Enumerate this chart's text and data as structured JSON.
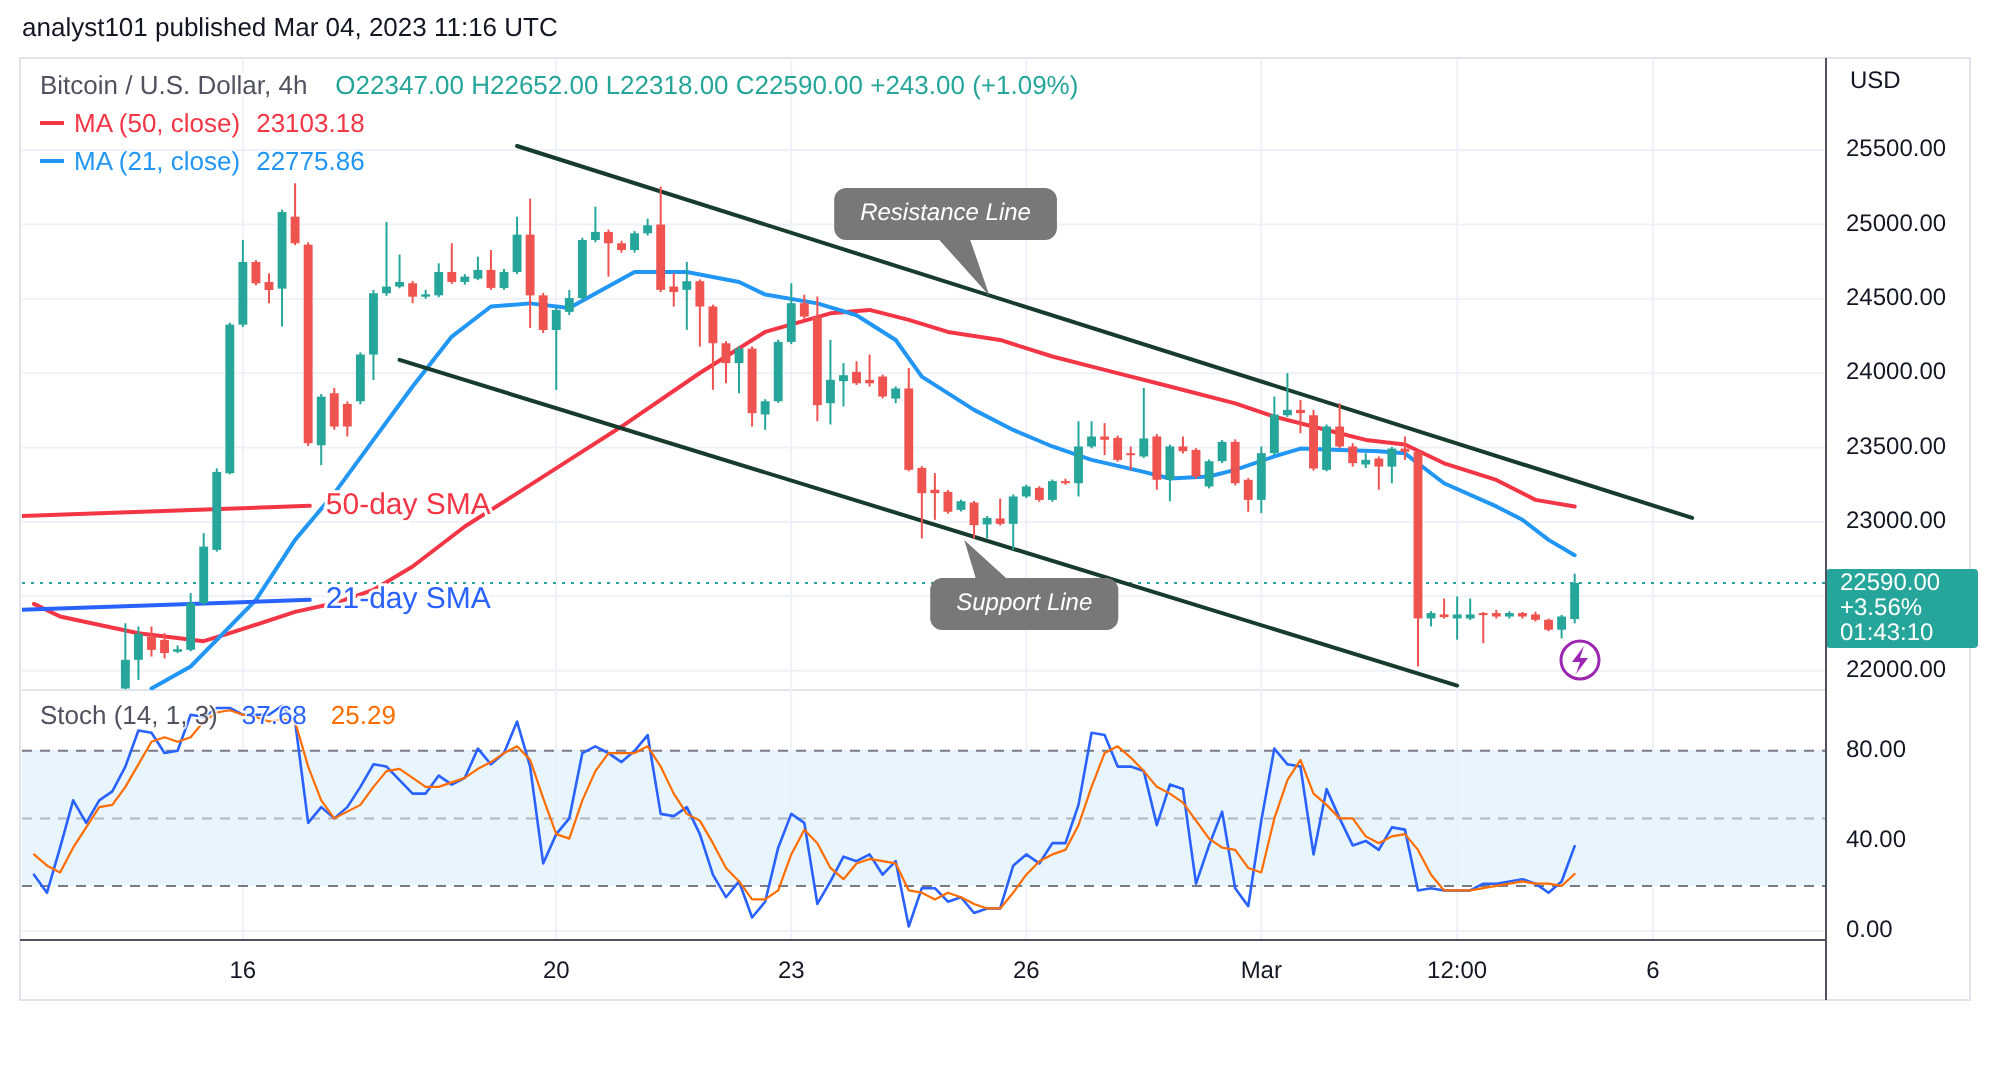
{
  "chart_data": [
    {
      "type": "candlestick",
      "title": "Bitcoin / U.S. Dollar, 4h",
      "subtitle": "O22347.00 H22652.00 L22318.00 C22590.00 +243.00 (+1.09%)",
      "ylabel": "USD",
      "annotations": [
        "analyst101 published Mar 04, 2023 11:16 UTC",
        {
          "text": "Resistance Line",
          "x": "2023-02-25T12:45",
          "y": 24519
        },
        {
          "text": "Support Line",
          "x": "2023-02-25T05:00",
          "y": 22879
        }
      ],
      "xlim": [
        "2023-02-13T04:20",
        "2023-03-08T05:00"
      ],
      "xticks": [
        {
          "value": "2023-02-16",
          "label": null
        },
        {
          "value": "2023-02-20",
          "label": null
        },
        {
          "value": "2023-02-23",
          "label": null
        },
        {
          "value": "2023-02-26",
          "label": null
        },
        {
          "value": "2023-03-01",
          "label": null
        },
        {
          "value": "2023-03-03T12:00",
          "label": null
        },
        {
          "value": "2023-03-06",
          "label": null
        }
      ],
      "ylim": [
        21870,
        26105
      ],
      "yticks": [
        {
          "value": 22000,
          "label": "22000.00"
        },
        {
          "value": 22500,
          "label": null
        },
        {
          "value": 23000,
          "label": "23000.00"
        },
        {
          "value": 23500,
          "label": "23500.00"
        },
        {
          "value": 24000,
          "label": "24000.00"
        },
        {
          "value": 24500,
          "label": "24500.00"
        },
        {
          "value": 25000,
          "label": "25000.00"
        },
        {
          "value": 25500,
          "label": "25500.00"
        }
      ],
      "grid": true,
      "tick_labels": "y",
      "legend": "top left",
      "ref_lines": [
        {
          "axis": "y",
          "value": 22590,
          "label": "22590.00\n+3.56%\n01:43:10",
          "color": "#26a69a",
          "line_style": "dotted"
        }
      ],
      "x": [
        "2023-02-14T12:00",
        "2023-02-14T16:00",
        "2023-02-14T20:00",
        "2023-02-15T00:00",
        "2023-02-15T04:00",
        "2023-02-15T08:00",
        "2023-02-15T12:00",
        "2023-02-15T16:00",
        "2023-02-15T20:00",
        "2023-02-16T00:00",
        "2023-02-16T04:00",
        "2023-02-16T08:00",
        "2023-02-16T12:00",
        "2023-02-16T16:00",
        "2023-02-16T20:00",
        "2023-02-17T00:00",
        "2023-02-17T04:00",
        "2023-02-17T08:00",
        "2023-02-17T12:00",
        "2023-02-17T16:00",
        "2023-02-17T20:00",
        "2023-02-18T00:00",
        "2023-02-18T04:00",
        "2023-02-18T08:00",
        "2023-02-18T12:00",
        "2023-02-18T16:00",
        "2023-02-18T20:00",
        "2023-02-19T00:00",
        "2023-02-19T04:00",
        "2023-02-19T08:00",
        "2023-02-19T12:00",
        "2023-02-19T16:00",
        "2023-02-19T20:00",
        "2023-02-20T00:00",
        "2023-02-20T04:00",
        "2023-02-20T08:00",
        "2023-02-20T12:00",
        "2023-02-20T16:00",
        "2023-02-20T20:00",
        "2023-02-21T00:00",
        "2023-02-21T04:00",
        "2023-02-21T08:00",
        "2023-02-21T12:00",
        "2023-02-21T16:00",
        "2023-02-21T20:00",
        "2023-02-22T00:00",
        "2023-02-22T04:00",
        "2023-02-22T08:00",
        "2023-02-22T12:00",
        "2023-02-22T16:00",
        "2023-02-22T20:00",
        "2023-02-23T00:00",
        "2023-02-23T04:00",
        "2023-02-23T08:00",
        "2023-02-23T12:00",
        "2023-02-23T16:00",
        "2023-02-23T20:00",
        "2023-02-24T00:00",
        "2023-02-24T04:00",
        "2023-02-24T08:00",
        "2023-02-24T12:00",
        "2023-02-24T16:00",
        "2023-02-24T20:00",
        "2023-02-25T00:00",
        "2023-02-25T04:00",
        "2023-02-25T08:00",
        "2023-02-25T12:00",
        "2023-02-25T16:00",
        "2023-02-25T20:00",
        "2023-02-26T00:00",
        "2023-02-26T04:00",
        "2023-02-26T08:00",
        "2023-02-26T12:00",
        "2023-02-26T16:00",
        "2023-02-26T20:00",
        "2023-02-27T00:00",
        "2023-02-27T04:00",
        "2023-02-27T08:00",
        "2023-02-27T12:00",
        "2023-02-27T16:00",
        "2023-02-27T20:00",
        "2023-02-28T00:00",
        "2023-02-28T04:00",
        "2023-02-28T08:00",
        "2023-02-28T12:00",
        "2023-02-28T16:00",
        "2023-02-28T20:00",
        "2023-03-01T00:00",
        "2023-03-01T04:00",
        "2023-03-01T08:00",
        "2023-03-01T12:00",
        "2023-03-01T16:00",
        "2023-03-01T20:00",
        "2023-03-02T00:00",
        "2023-03-02T04:00",
        "2023-03-02T08:00",
        "2023-03-02T12:00",
        "2023-03-02T16:00",
        "2023-03-02T20:00",
        "2023-03-03T00:00",
        "2023-03-03T04:00",
        "2023-03-03T08:00",
        "2023-03-03T12:00",
        "2023-03-03T16:00",
        "2023-03-03T20:00",
        "2023-03-04T00:00",
        "2023-03-04T04:00",
        "2023-03-04T08:00",
        "2023-03-04T12:00",
        "2023-03-04T16:00",
        "2023-03-04T20:00",
        "2023-03-05T00:00"
      ],
      "ohlc": [
        [
          21880,
          22319,
          21875,
          22073
        ],
        [
          22073,
          22297,
          21938,
          22248
        ],
        [
          22230,
          22297,
          22095,
          22140
        ],
        [
          22207,
          22252,
          22082,
          22118
        ],
        [
          22127,
          22170,
          22118,
          22144
        ],
        [
          22140,
          22521,
          22130,
          22454
        ],
        [
          22454,
          22924,
          22440,
          22834
        ],
        [
          22812,
          23360,
          22800,
          23336
        ],
        [
          23327,
          24340,
          23320,
          24326
        ],
        [
          24326,
          24895,
          24310,
          24747
        ],
        [
          24747,
          24760,
          24590,
          24604
        ],
        [
          24613,
          24671,
          24470,
          24559
        ],
        [
          24568,
          25100,
          24313,
          25083
        ],
        [
          25052,
          25276,
          24860,
          24873
        ],
        [
          24864,
          24880,
          23510,
          23529
        ],
        [
          23515,
          23860,
          23381,
          23842
        ],
        [
          23865,
          23901,
          23620,
          23641
        ],
        [
          23793,
          23810,
          23574,
          23641
        ],
        [
          23811,
          24140,
          23790,
          24125
        ],
        [
          24125,
          24560,
          23954,
          24537
        ],
        [
          24537,
          25016,
          24520,
          24582
        ],
        [
          24582,
          24797,
          24570,
          24613
        ],
        [
          24604,
          24620,
          24470,
          24514
        ],
        [
          24514,
          24560,
          24500,
          24530
        ],
        [
          24523,
          24738,
          24510,
          24680
        ],
        [
          24680,
          24873,
          24600,
          24613
        ],
        [
          24613,
          24665,
          24595,
          24649
        ],
        [
          24635,
          24783,
          24625,
          24694
        ],
        [
          24694,
          24828,
          24560,
          24573
        ],
        [
          24573,
          24700,
          24560,
          24680
        ],
        [
          24680,
          25052,
          24665,
          24931
        ],
        [
          24931,
          25173,
          24304,
          24523
        ],
        [
          24523,
          24540,
          24270,
          24290
        ],
        [
          24290,
          24440,
          23887,
          24425
        ],
        [
          24412,
          24559,
          24390,
          24505
        ],
        [
          24505,
          24910,
          24490,
          24895
        ],
        [
          24895,
          25119,
          24880,
          24949
        ],
        [
          24949,
          24965,
          24649,
          24873
        ],
        [
          24873,
          24890,
          24810,
          24828
        ],
        [
          24828,
          24955,
          24810,
          24940
        ],
        [
          24940,
          25039,
          24925,
          24994
        ],
        [
          24999,
          25254,
          24545,
          24560
        ],
        [
          24582,
          24672,
          24448,
          24546
        ],
        [
          24560,
          24748,
          24291,
          24618
        ],
        [
          24618,
          24630,
          24179,
          24448
        ],
        [
          24448,
          24460,
          23888,
          24201
        ],
        [
          24201,
          24215,
          23932,
          24067
        ],
        [
          24067,
          24180,
          23865,
          24165
        ],
        [
          24165,
          24180,
          23641,
          23731
        ],
        [
          23722,
          23825,
          23619,
          23811
        ],
        [
          23811,
          24225,
          23800,
          24210
        ],
        [
          24210,
          24604,
          24195,
          24470
        ],
        [
          24470,
          24528,
          24365,
          24380
        ],
        [
          24380,
          24515,
          23677,
          23785
        ],
        [
          23798,
          24224,
          23655,
          23955
        ],
        [
          23946,
          24067,
          23776,
          23986
        ],
        [
          24009,
          24080,
          23920,
          23932
        ],
        [
          23955,
          24125,
          23910,
          23932
        ],
        [
          23977,
          23990,
          23830,
          23843
        ],
        [
          23829,
          23910,
          23798,
          23897
        ],
        [
          23897,
          24035,
          23340,
          23350
        ],
        [
          23363,
          23375,
          22889,
          23193
        ],
        [
          23216,
          23328,
          23014,
          23193
        ],
        [
          23202,
          23215,
          23055,
          23068
        ],
        [
          23081,
          23150,
          23070,
          23139
        ],
        [
          23130,
          23140,
          22889,
          22978
        ],
        [
          22983,
          23040,
          22889,
          23027
        ],
        [
          23023,
          23157,
          22975,
          22987
        ],
        [
          22987,
          23185,
          22812,
          23171
        ],
        [
          23171,
          23250,
          23160,
          23238
        ],
        [
          23229,
          23240,
          23135,
          23148
        ],
        [
          23148,
          23285,
          23135,
          23274
        ],
        [
          23274,
          23290,
          23250,
          23260
        ],
        [
          23260,
          23677,
          23171,
          23507
        ],
        [
          23507,
          23677,
          23495,
          23574
        ],
        [
          23574,
          23664,
          23449,
          23552
        ],
        [
          23565,
          23580,
          23405,
          23417
        ],
        [
          23462,
          23507,
          23350,
          23449
        ],
        [
          23440,
          23901,
          23430,
          23561
        ],
        [
          23574,
          23590,
          23216,
          23283
        ],
        [
          23283,
          23520,
          23139,
          23507
        ],
        [
          23507,
          23574,
          23460,
          23475
        ],
        [
          23484,
          23495,
          23290,
          23305
        ],
        [
          23238,
          23420,
          23225,
          23408
        ],
        [
          23408,
          23550,
          23395,
          23538
        ],
        [
          23538,
          23555,
          23245,
          23260
        ],
        [
          23283,
          23295,
          23068,
          23148
        ],
        [
          23148,
          23507,
          23059,
          23462
        ],
        [
          23462,
          23843,
          23450,
          23722
        ],
        [
          23717,
          24000,
          23705,
          23753
        ],
        [
          23753,
          23820,
          23596,
          23731
        ],
        [
          23717,
          23753,
          23345,
          23359
        ],
        [
          23350,
          23655,
          23340,
          23641
        ],
        [
          23641,
          23798,
          23495,
          23507
        ],
        [
          23507,
          23529,
          23372,
          23395
        ],
        [
          23386,
          23462,
          23363,
          23417
        ],
        [
          23426,
          23440,
          23216,
          23372
        ],
        [
          23372,
          23505,
          23260,
          23493
        ],
        [
          23493,
          23574,
          23417,
          23471
        ],
        [
          23471,
          23485,
          22028,
          22351
        ],
        [
          22351,
          22400,
          22297,
          22387
        ],
        [
          22378,
          22485,
          22350,
          22360
        ],
        [
          22351,
          22499,
          22208,
          22378
        ],
        [
          22351,
          22485,
          22340,
          22378
        ],
        [
          22387,
          22395,
          22185,
          22378
        ],
        [
          22387,
          22409,
          22350,
          22364
        ],
        [
          22364,
          22400,
          22350,
          22387
        ],
        [
          22387,
          22395,
          22350,
          22364
        ],
        [
          22378,
          22396,
          22330,
          22342
        ],
        [
          22342,
          22350,
          22265,
          22275
        ],
        [
          22275,
          22375,
          22217,
          22364
        ],
        [
          22347,
          22652,
          22318,
          22590
        ]
      ],
      "series": [
        {
          "type": "line",
          "name": "MA (50, close) 23103.18",
          "color": "#f23645",
          "x": [
            "2023-02-13T08:00",
            "2023-02-13T16:00",
            "2023-02-14T16:00",
            "2023-02-15T12:00",
            "2023-02-15T20:00",
            "2023-02-16T16:00",
            "2023-02-17T04:00",
            "2023-02-17T16:00",
            "2023-02-18T04:00",
            "2023-02-18T20:00",
            "2023-02-19T12:00",
            "2023-02-20T04:00",
            "2023-02-20T20:00",
            "2023-02-21T20:00",
            "2023-02-22T16:00",
            "2023-02-23T12:00",
            "2023-02-24T00:00",
            "2023-02-24T12:00",
            "2023-02-25T00:00",
            "2023-02-25T16:00",
            "2023-02-26T08:00",
            "2023-02-27T00:00",
            "2023-02-27T20:00",
            "2023-02-28T16:00",
            "2023-03-01T04:00",
            "2023-03-01T20:00",
            "2023-03-02T08:00",
            "2023-03-02T20:00",
            "2023-03-03T08:00",
            "2023-03-04T00:00",
            "2023-03-04T12:00",
            "2023-03-05T00:00"
          ],
          "values": [
            22449,
            22364,
            22252,
            22198,
            22252,
            22395,
            22453,
            22543,
            22700,
            22969,
            23192,
            23417,
            23641,
            24001,
            24277,
            24402,
            24425,
            24358,
            24277,
            24223,
            24112,
            24022,
            23910,
            23797,
            23708,
            23618,
            23551,
            23520,
            23394,
            23282,
            23148,
            23103.18
          ]
        },
        {
          "type": "line",
          "name": "MA (21, close) 22775.86",
          "color": "#2196f3",
          "x": [
            "2023-02-14T20:00",
            "2023-02-15T08:00",
            "2023-02-15T16:00",
            "2023-02-16T04:00",
            "2023-02-16T12:00",
            "2023-02-16T16:00",
            "2023-02-17T04:00",
            "2023-02-17T16:00",
            "2023-02-18T04:00",
            "2023-02-18T16:00",
            "2023-02-19T04:00",
            "2023-02-19T16:00",
            "2023-02-20T04:00",
            "2023-02-20T12:00",
            "2023-02-21T00:00",
            "2023-02-21T16:00",
            "2023-02-22T08:00",
            "2023-02-22T16:00",
            "2023-02-23T08:00",
            "2023-02-23T20:00",
            "2023-02-24T08:00",
            "2023-02-24T16:00",
            "2023-02-25T08:00",
            "2023-02-25T20:00",
            "2023-02-26T08:00",
            "2023-02-26T20:00",
            "2023-02-27T12:00",
            "2023-02-27T20:00",
            "2023-02-28T08:00",
            "2023-02-28T16:00",
            "2023-03-01T04:00",
            "2023-03-01T12:00",
            "2023-03-02T00:00",
            "2023-03-02T12:00",
            "2023-03-02T20:00",
            "2023-03-03T08:00",
            "2023-03-04T00:00",
            "2023-03-04T08:00",
            "2023-03-04T16:00",
            "2023-03-05T00:00"
          ],
          "values": [
            21880,
            22028,
            22207,
            22476,
            22745,
            22879,
            23192,
            23551,
            23910,
            24246,
            24448,
            24469,
            24438,
            24536,
            24680,
            24680,
            24613,
            24528,
            24469,
            24389,
            24223,
            23977,
            23753,
            23618,
            23507,
            23417,
            23336,
            23292,
            23305,
            23350,
            23440,
            23493,
            23484,
            23475,
            23461,
            23260,
            23104,
            23014,
            22879,
            22775.86
          ]
        },
        {
          "type": "line",
          "color": "#173b2c",
          "x": [
            "2023-02-19T12:00",
            "2023-03-06T12:00"
          ],
          "values": [
            25527,
            23027
          ]
        },
        {
          "type": "line",
          "color": "#173b2c",
          "x": [
            "2023-02-18T00:00",
            "2023-03-03T12:00"
          ],
          "values": [
            24089,
            21900
          ]
        },
        {
          "type": "line",
          "name": "50-day SMA",
          "color": "#f23645",
          "x": [
            "2023-02-13T04:20",
            "2023-02-16T20:30"
          ],
          "values": [
            23040,
            23108
          ]
        },
        {
          "type": "line",
          "name": "21-day SMA",
          "color": "#2962ff",
          "x": [
            "2023-02-13T04:20",
            "2023-02-16T20:30"
          ],
          "values": [
            22409,
            22476
          ]
        }
      ]
    },
    {
      "type": "line",
      "title": "Stoch (14, 1, 3)",
      "legend": "top left",
      "grid": true,
      "xlim": [
        "2023-02-13T04:20",
        "2023-03-08T05:00"
      ],
      "xticks": [
        {
          "value": "2023-02-16",
          "label": "16"
        },
        {
          "value": "2023-02-20",
          "label": "20"
        },
        {
          "value": "2023-02-23",
          "label": "23"
        },
        {
          "value": "2023-02-26",
          "label": "26"
        },
        {
          "value": "2023-03-01",
          "label": "Mar"
        },
        {
          "value": "2023-03-03T12:00",
          "label": "12:00"
        },
        {
          "value": "2023-03-06",
          "label": "6"
        }
      ],
      "ylim": [
        -4,
        107
      ],
      "yticks": [
        {
          "value": 0,
          "label": "0.00"
        },
        {
          "value": 40,
          "label": "40.00"
        },
        {
          "value": 80,
          "label": "80.00"
        }
      ],
      "bands": [
        {
          "axis": "y",
          "from": 20,
          "to": 80,
          "color": "#e3f2fd"
        }
      ],
      "ref_lines": [
        {
          "axis": "y",
          "value": 80,
          "color": "#787b86",
          "line_style": "dashed"
        },
        {
          "axis": "y",
          "value": 50,
          "color": "#b2b5be",
          "line_style": "dashed"
        },
        {
          "axis": "y",
          "value": 20,
          "color": "#787b86",
          "line_style": "dashed"
        }
      ],
      "x": [
        "2023-02-13T08:00",
        "2023-02-13T12:00",
        "2023-02-13T16:00",
        "2023-02-13T20:00",
        "2023-02-14T00:00",
        "2023-02-14T04:00",
        "2023-02-14T08:00",
        "2023-02-14T12:00",
        "2023-02-14T16:00",
        "2023-02-14T20:00",
        "2023-02-15T00:00",
        "2023-02-15T04:00",
        "2023-02-15T08:00",
        "2023-02-15T12:00",
        "2023-02-15T16:00",
        "2023-02-15T20:00",
        "2023-02-16T00:00",
        "2023-02-16T04:00",
        "2023-02-16T08:00",
        "2023-02-16T12:00",
        "2023-02-16T16:00",
        "2023-02-16T20:00",
        "2023-02-17T00:00",
        "2023-02-17T04:00",
        "2023-02-17T08:00",
        "2023-02-17T12:00",
        "2023-02-17T16:00",
        "2023-02-17T20:00",
        "2023-02-18T00:00",
        "2023-02-18T04:00",
        "2023-02-18T08:00",
        "2023-02-18T12:00",
        "2023-02-18T16:00",
        "2023-02-18T20:00",
        "2023-02-19T00:00",
        "2023-02-19T04:00",
        "2023-02-19T08:00",
        "2023-02-19T12:00",
        "2023-02-19T16:00",
        "2023-02-19T20:00",
        "2023-02-20T00:00",
        "2023-02-20T04:00",
        "2023-02-20T08:00",
        "2023-02-20T12:00",
        "2023-02-20T16:00",
        "2023-02-20T20:00",
        "2023-02-21T00:00",
        "2023-02-21T04:00",
        "2023-02-21T08:00",
        "2023-02-21T12:00",
        "2023-02-21T16:00",
        "2023-02-21T20:00",
        "2023-02-22T00:00",
        "2023-02-22T04:00",
        "2023-02-22T08:00",
        "2023-02-22T12:00",
        "2023-02-22T16:00",
        "2023-02-22T20:00",
        "2023-02-23T00:00",
        "2023-02-23T04:00",
        "2023-02-23T08:00",
        "2023-02-23T12:00",
        "2023-02-23T16:00",
        "2023-02-23T20:00",
        "2023-02-24T00:00",
        "2023-02-24T04:00",
        "2023-02-24T08:00",
        "2023-02-24T12:00",
        "2023-02-24T16:00",
        "2023-02-24T20:00",
        "2023-02-25T00:00",
        "2023-02-25T04:00",
        "2023-02-25T08:00",
        "2023-02-25T12:00",
        "2023-02-25T16:00",
        "2023-02-25T20:00",
        "2023-02-26T00:00",
        "2023-02-26T04:00",
        "2023-02-26T08:00",
        "2023-02-26T12:00",
        "2023-02-26T16:00",
        "2023-02-26T20:00",
        "2023-02-27T00:00",
        "2023-02-27T04:00",
        "2023-02-27T08:00",
        "2023-02-27T12:00",
        "2023-02-27T16:00",
        "2023-02-27T20:00",
        "2023-02-28T00:00",
        "2023-02-28T04:00",
        "2023-02-28T08:00",
        "2023-02-28T12:00",
        "2023-02-28T16:00",
        "2023-02-28T20:00",
        "2023-03-01T00:00",
        "2023-03-01T04:00",
        "2023-03-01T08:00",
        "2023-03-01T12:00",
        "2023-03-01T16:00",
        "2023-03-01T20:00",
        "2023-03-02T00:00",
        "2023-03-02T04:00",
        "2023-03-02T08:00",
        "2023-03-02T12:00",
        "2023-03-02T16:00",
        "2023-03-02T20:00",
        "2023-03-03T00:00",
        "2023-03-03T04:00",
        "2023-03-03T08:00",
        "2023-03-03T12:00",
        "2023-03-03T16:00",
        "2023-03-03T20:00",
        "2023-03-04T00:00",
        "2023-03-04T04:00",
        "2023-03-04T08:00",
        "2023-03-04T12:00",
        "2023-03-04T16:00",
        "2023-03-04T20:00",
        "2023-03-05T00:00"
      ],
      "series": [
        {
          "name": "37.68",
          "color": "#2962ff",
          "values": [
            25,
            17,
            37,
            58,
            48,
            58,
            62,
            73,
            89,
            88,
            79,
            80,
            96,
            95,
            99,
            99,
            96,
            96,
            96,
            100,
            93,
            48,
            55,
            50,
            55,
            64,
            74,
            73,
            67,
            61,
            61,
            69,
            65,
            68,
            81,
            74,
            79,
            93,
            73,
            30,
            43,
            50,
            79,
            82,
            79,
            75,
            80,
            87,
            52,
            51,
            55,
            43,
            25,
            15,
            22,
            6,
            13,
            37,
            52,
            48,
            12,
            22,
            33,
            31,
            34,
            25,
            31,
            2,
            19,
            19,
            13,
            15,
            8,
            10,
            10,
            29,
            34,
            30,
            39,
            39,
            56,
            88,
            87,
            73,
            73,
            71,
            47,
            65,
            63,
            21,
            38,
            53,
            19,
            11,
            49,
            81,
            74,
            73,
            34,
            63,
            50,
            38,
            40,
            36,
            46,
            45,
            18,
            19,
            18,
            18,
            18,
            21,
            21,
            22,
            23,
            21,
            17,
            22,
            37.68
          ]
        },
        {
          "name": "25.29",
          "color": "#ff6d00",
          "values": [
            34,
            29,
            26,
            37,
            46,
            55,
            56,
            64,
            74,
            84,
            86,
            84,
            86,
            93,
            97,
            98,
            96,
            95,
            93,
            94,
            93,
            73,
            58,
            50,
            53,
            56,
            64,
            71,
            72,
            68,
            64,
            64,
            66,
            68,
            72,
            75,
            79,
            82,
            76,
            59,
            43,
            41,
            58,
            71,
            79,
            79,
            79,
            82,
            73,
            61,
            52,
            49,
            39,
            28,
            22,
            14,
            14,
            18,
            34,
            45,
            39,
            28,
            23,
            30,
            32,
            31,
            30,
            18,
            17,
            14,
            17,
            15,
            12,
            10,
            10,
            17,
            25,
            31,
            34,
            36,
            47,
            64,
            79,
            82,
            77,
            71,
            64,
            61,
            57,
            49,
            41,
            37,
            36,
            28,
            26,
            50,
            67,
            76,
            61,
            56,
            50,
            50,
            42,
            39,
            42,
            43,
            36,
            25,
            18,
            18,
            18,
            19,
            20,
            21,
            22,
            21,
            21,
            20,
            25.29
          ]
        }
      ]
    }
  ]
}
